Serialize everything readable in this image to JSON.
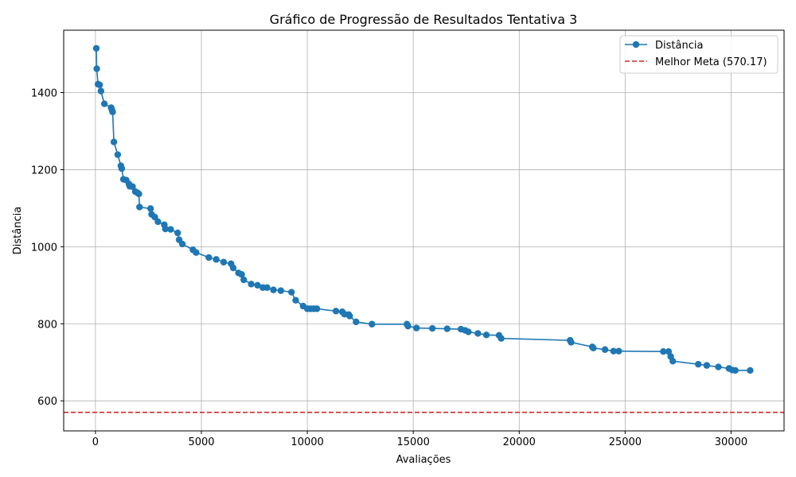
{
  "chart_data": {
    "type": "line",
    "title": "Gráfico de Progressão de Resultados Tentativa 3",
    "xlabel": "Avaliações",
    "ylabel": "Distância",
    "xlim": [
      -1500,
      32500
    ],
    "ylim": [
      522,
      1562
    ],
    "xticks": [
      0,
      5000,
      10000,
      15000,
      20000,
      25000,
      30000
    ],
    "yticks": [
      600,
      800,
      1000,
      1200,
      1400
    ],
    "grid": true,
    "legend_position": "top-right",
    "series": [
      {
        "name": "Distância",
        "color": "#1f77b4",
        "marker": "circle",
        "x": [
          40,
          60,
          120,
          200,
          260,
          420,
          740,
          780,
          810,
          870,
          1050,
          1200,
          1240,
          1320,
          1450,
          1580,
          1620,
          1750,
          1880,
          1980,
          2050,
          2080,
          2600,
          2650,
          2800,
          2950,
          3250,
          3300,
          3550,
          3880,
          3950,
          4100,
          4600,
          4750,
          5350,
          5700,
          6050,
          6400,
          6500,
          6750,
          6900,
          7000,
          7350,
          7650,
          7900,
          8100,
          8400,
          8750,
          9250,
          9450,
          9800,
          10000,
          10150,
          10300,
          10450,
          11350,
          11650,
          11750,
          11950,
          12000,
          12300,
          13050,
          14700,
          14750,
          15150,
          15900,
          16600,
          17250,
          17450,
          17600,
          18050,
          18450,
          19050,
          19150,
          22400,
          22450,
          23450,
          23500,
          24050,
          24450,
          24700,
          26800,
          27050,
          27150,
          27250,
          28450,
          28850,
          29400,
          29900,
          30050,
          30200,
          30900
        ],
        "y": [
          1515,
          1462,
          1422,
          1420,
          1404,
          1371,
          1361,
          1355,
          1350,
          1272,
          1239,
          1210,
          1203,
          1175,
          1173,
          1163,
          1157,
          1156,
          1143,
          1140,
          1137,
          1103,
          1099,
          1084,
          1077,
          1065,
          1057,
          1046,
          1045,
          1036,
          1018,
          1007,
          992,
          985,
          972,
          967,
          960,
          956,
          945,
          932,
          928,
          914,
          903,
          900,
          894,
          894,
          888,
          886,
          882,
          861,
          846,
          839,
          839,
          839,
          839,
          833,
          831,
          825,
          824,
          820,
          805,
          799,
          799,
          794,
          789,
          788,
          787,
          786,
          783,
          779,
          775,
          771,
          770,
          762,
          757,
          752,
          740,
          737,
          733,
          729,
          729,
          728,
          728,
          715,
          703,
          695,
          692,
          688,
          684,
          680,
          679,
          679
        ]
      }
    ],
    "reference_lines": [
      {
        "name": "Melhor Meta (570.17)",
        "value": 570.17,
        "orientation": "horizontal",
        "color": "#d62728",
        "style": "dashed"
      }
    ]
  }
}
